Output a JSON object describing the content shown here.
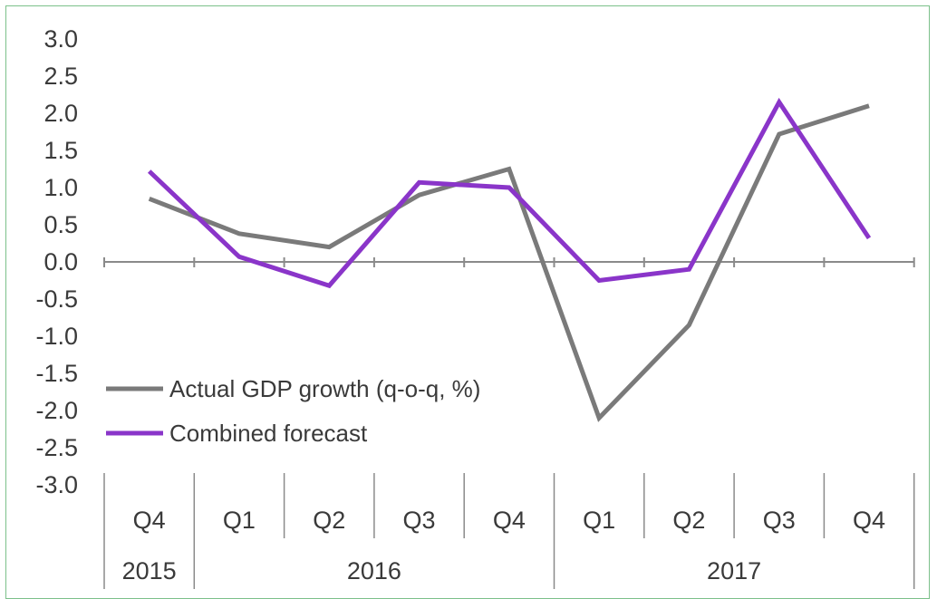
{
  "chart_data": {
    "type": "line",
    "title": "",
    "xlabel": "",
    "ylabel": "",
    "ylim": [
      -3.0,
      3.0
    ],
    "ytick_labels": [
      "3.0",
      "2.5",
      "2.0",
      "1.5",
      "1.0",
      "0.5",
      "0.0",
      "-0.5",
      "-1.0",
      "-1.5",
      "-2.0",
      "-2.5",
      "-3.0"
    ],
    "ytick_values": [
      3.0,
      2.5,
      2.0,
      1.5,
      1.0,
      0.5,
      0.0,
      -0.5,
      -1.0,
      -1.5,
      -2.0,
      -2.5,
      -3.0
    ],
    "categories": [
      "Q4",
      "Q1",
      "Q2",
      "Q3",
      "Q4",
      "Q1",
      "Q2",
      "Q3",
      "Q4"
    ],
    "years": [
      {
        "label": "2015",
        "span": [
          0,
          0
        ]
      },
      {
        "label": "2016",
        "span": [
          1,
          4
        ]
      },
      {
        "label": "2017",
        "span": [
          5,
          8
        ]
      }
    ],
    "series": [
      {
        "name": "Actual GDP growth (q-o-q, %)",
        "color": "#7a7a7a",
        "values": [
          0.85,
          0.38,
          0.2,
          0.9,
          1.25,
          -2.1,
          -0.85,
          1.72,
          2.1
        ]
      },
      {
        "name": "Combined forecast",
        "color": "#8a35c9",
        "values": [
          1.22,
          0.07,
          -0.32,
          1.07,
          1.0,
          -0.25,
          -0.1,
          2.15,
          0.32
        ]
      }
    ],
    "legend_position": "bottom-left",
    "grid": false
  }
}
